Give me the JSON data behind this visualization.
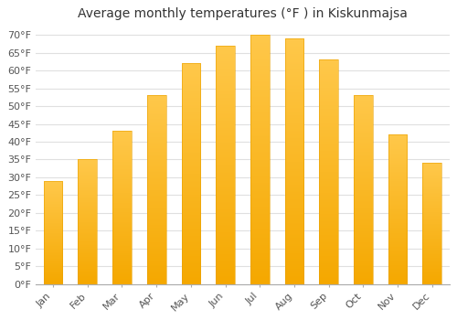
{
  "title": "Average monthly temperatures (°F ) in Kiskunmajsa",
  "months": [
    "Jan",
    "Feb",
    "Mar",
    "Apr",
    "May",
    "Jun",
    "Jul",
    "Aug",
    "Sep",
    "Oct",
    "Nov",
    "Dec"
  ],
  "values": [
    29,
    35,
    43,
    53,
    62,
    67,
    70,
    69,
    63,
    53,
    42,
    34
  ],
  "bar_color_top": "#FFC84A",
  "bar_color_bottom": "#F5A800",
  "background_color": "#FFFFFF",
  "grid_color": "#E0E0E0",
  "title_fontsize": 10,
  "tick_fontsize": 8,
  "ylim": [
    0,
    72
  ],
  "yticks": [
    0,
    5,
    10,
    15,
    20,
    25,
    30,
    35,
    40,
    45,
    50,
    55,
    60,
    65,
    70
  ],
  "bar_width": 0.55
}
